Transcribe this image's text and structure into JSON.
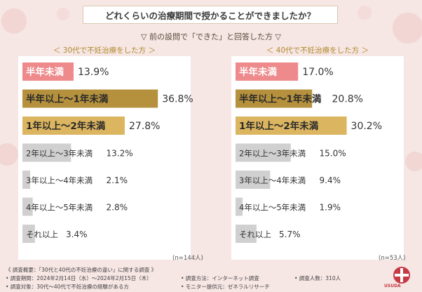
{
  "title": "どれくらいの治療期間で授かることができましたか？",
  "subtitle": "▽ 前の設問で「できた」と回答した方 ▽",
  "chart_data": [
    {
      "type": "bar",
      "title": "＜ 30代で不妊治療をした方 ＞",
      "n_label": "(n=144人)",
      "categories": [
        "半年未満",
        "半年以上〜1年未満",
        "1年以上〜2年未満",
        "2年以上〜3年未満",
        "3年以上〜4年未満",
        "4年以上〜5年未満",
        "それ以上"
      ],
      "values": [
        13.9,
        36.8,
        27.8,
        13.2,
        2.1,
        2.8,
        3.4
      ],
      "value_labels": [
        "13.9%",
        "36.8%",
        "27.8%",
        "13.2%",
        "2.1%",
        "2.8%",
        "3.4%"
      ],
      "bar_colors": [
        "#ee8a8c",
        "#b5913e",
        "#dcb560",
        "#d0d0d0",
        "#d0d0d0",
        "#d0d0d0",
        "#d0d0d0"
      ],
      "xlim": [
        0,
        40
      ]
    },
    {
      "type": "bar",
      "title": "＜ 40代で不妊治療をした方 ＞",
      "n_label": "(n=53人)",
      "categories": [
        "半年未満",
        "半年以上〜1年未満",
        "1年以上〜2年未満",
        "2年以上〜3年未満",
        "3年以上〜4年未満",
        "4年以上〜5年未満",
        "それ以上"
      ],
      "values": [
        17.0,
        20.8,
        30.2,
        15.0,
        9.4,
        1.9,
        5.7
      ],
      "value_labels": [
        "17.0%",
        "20.8%",
        "30.2%",
        "15.0%",
        "9.4%",
        "1.9%",
        "5.7%"
      ],
      "bar_colors": [
        "#ee8a8c",
        "#b5913e",
        "#dcb560",
        "#d0d0d0",
        "#d0d0d0",
        "#d0d0d0",
        "#d0d0d0"
      ],
      "xlim": [
        0,
        40
      ]
    }
  ],
  "footer": {
    "survey_topic": "《 調査概要：「30代と40代の不妊治療の違い」に関する調査 》",
    "period": "• 調査期間：2024年2月14日（水）〜2024年2月15日（木）",
    "target": "• 調査対象：30代〜40代で不妊治療の経験がある方",
    "method": "• 調査方法：インターネット調査",
    "provider": "• モニター提供元：ゼネラルリサーチ",
    "count": "• 調査人数：310人"
  },
  "logo_text": "USUDA",
  "colors": {
    "accent_gold": "#b08a2e",
    "pink": "#ee8a8c",
    "gray": "#d0d0d0"
  }
}
